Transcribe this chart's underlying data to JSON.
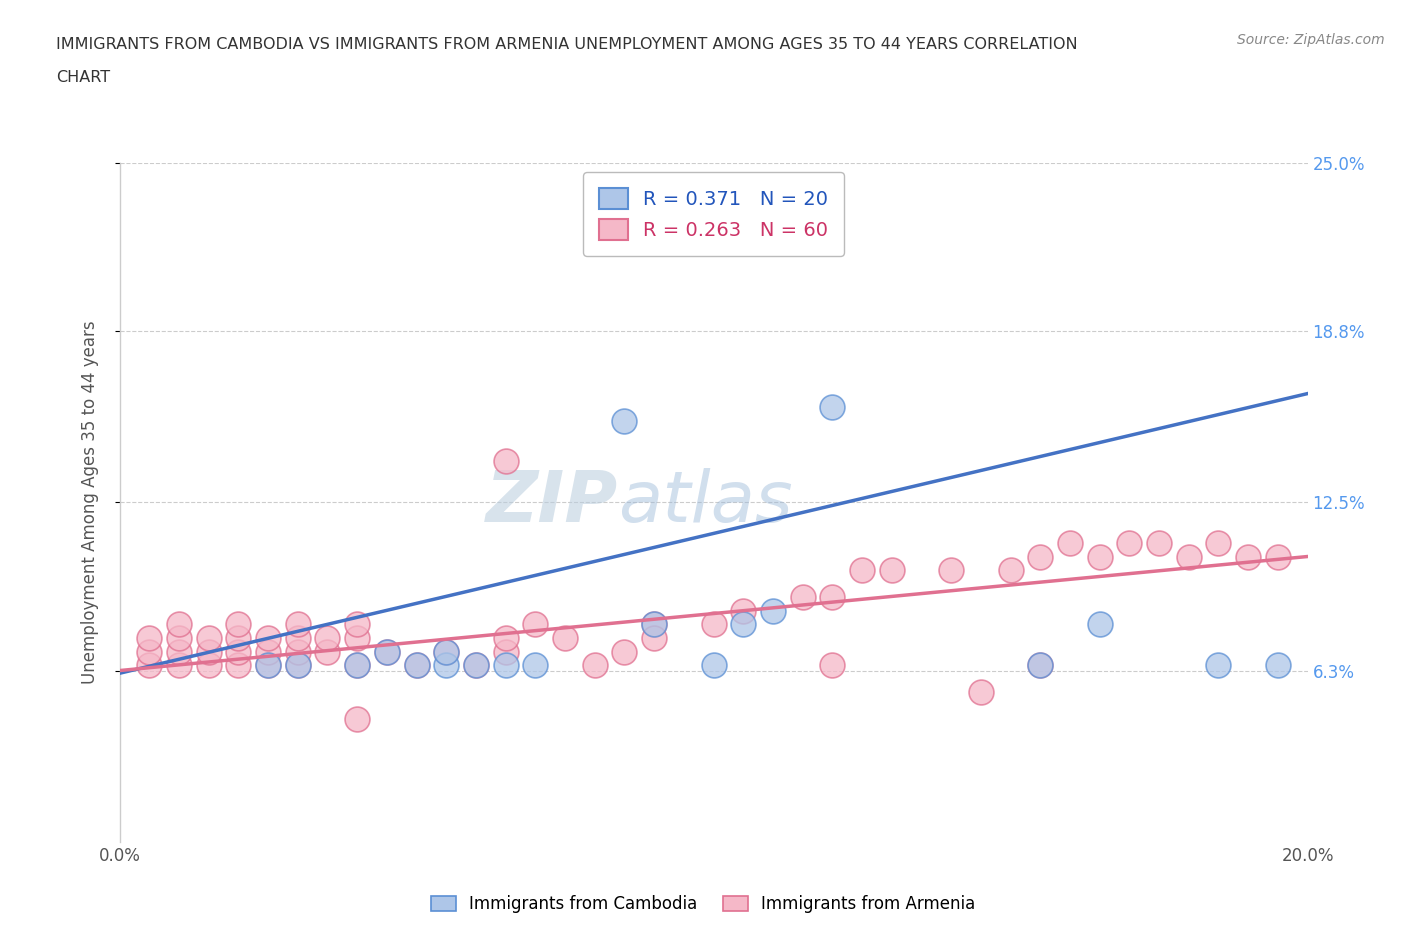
{
  "title_line1": "IMMIGRANTS FROM CAMBODIA VS IMMIGRANTS FROM ARMENIA UNEMPLOYMENT AMONG AGES 35 TO 44 YEARS CORRELATION",
  "title_line2": "CHART",
  "source": "Source: ZipAtlas.com",
  "ylabel": "Unemployment Among Ages 35 to 44 years",
  "xlim": [
    0.0,
    0.2
  ],
  "ylim": [
    0.0,
    0.25
  ],
  "yticks": [
    0.063,
    0.125,
    0.188,
    0.25
  ],
  "ytick_labels": [
    "6.3%",
    "12.5%",
    "18.8%",
    "25.0%"
  ],
  "xticks": [
    0.0,
    0.05,
    0.1,
    0.15,
    0.2
  ],
  "xtick_labels": [
    "0.0%",
    "",
    "",
    "",
    "20.0%"
  ],
  "legend_cambodia_r": "0.371",
  "legend_cambodia_n": "20",
  "legend_armenia_r": "0.263",
  "legend_armenia_n": "60",
  "cambodia_color": "#aec6e8",
  "cambodia_edge_color": "#5b8fd4",
  "cambodia_line_color": "#4472c4",
  "armenia_color": "#f5b8c8",
  "armenia_edge_color": "#e07090",
  "armenia_line_color": "#e07090",
  "watermark_color": "#c8daf0",
  "background_color": "#ffffff",
  "grid_color": "#cccccc",
  "right_tick_color": "#5599ee",
  "cambodia_x": [
    0.025,
    0.03,
    0.04,
    0.045,
    0.05,
    0.055,
    0.055,
    0.06,
    0.065,
    0.07,
    0.085,
    0.09,
    0.1,
    0.105,
    0.11,
    0.12,
    0.155,
    0.165,
    0.185,
    0.195
  ],
  "cambodia_y": [
    0.065,
    0.065,
    0.065,
    0.07,
    0.065,
    0.065,
    0.07,
    0.065,
    0.065,
    0.065,
    0.155,
    0.08,
    0.065,
    0.08,
    0.085,
    0.16,
    0.065,
    0.08,
    0.065,
    0.065
  ],
  "armenia_x": [
    0.005,
    0.005,
    0.005,
    0.01,
    0.01,
    0.01,
    0.01,
    0.015,
    0.015,
    0.015,
    0.02,
    0.02,
    0.02,
    0.02,
    0.025,
    0.025,
    0.025,
    0.03,
    0.03,
    0.03,
    0.03,
    0.035,
    0.035,
    0.04,
    0.04,
    0.04,
    0.045,
    0.05,
    0.055,
    0.06,
    0.065,
    0.065,
    0.07,
    0.075,
    0.08,
    0.085,
    0.09,
    0.1,
    0.105,
    0.115,
    0.12,
    0.125,
    0.13,
    0.14,
    0.15,
    0.155,
    0.16,
    0.17,
    0.175,
    0.18,
    0.185,
    0.19,
    0.195,
    0.04,
    0.065,
    0.09,
    0.12,
    0.145,
    0.155,
    0.165
  ],
  "armenia_y": [
    0.065,
    0.07,
    0.075,
    0.065,
    0.07,
    0.075,
    0.08,
    0.065,
    0.07,
    0.075,
    0.065,
    0.07,
    0.075,
    0.08,
    0.065,
    0.07,
    0.075,
    0.065,
    0.07,
    0.075,
    0.08,
    0.07,
    0.075,
    0.065,
    0.075,
    0.08,
    0.07,
    0.065,
    0.07,
    0.065,
    0.07,
    0.075,
    0.08,
    0.075,
    0.065,
    0.07,
    0.08,
    0.08,
    0.085,
    0.09,
    0.09,
    0.1,
    0.1,
    0.1,
    0.1,
    0.105,
    0.11,
    0.11,
    0.11,
    0.105,
    0.11,
    0.105,
    0.105,
    0.045,
    0.14,
    0.075,
    0.065,
    0.055,
    0.065,
    0.105
  ],
  "cam_trend_x": [
    0.0,
    0.2
  ],
  "cam_trend_y": [
    0.062,
    0.165
  ],
  "arm_trend_x": [
    0.0,
    0.2
  ],
  "arm_trend_y": [
    0.063,
    0.105
  ]
}
